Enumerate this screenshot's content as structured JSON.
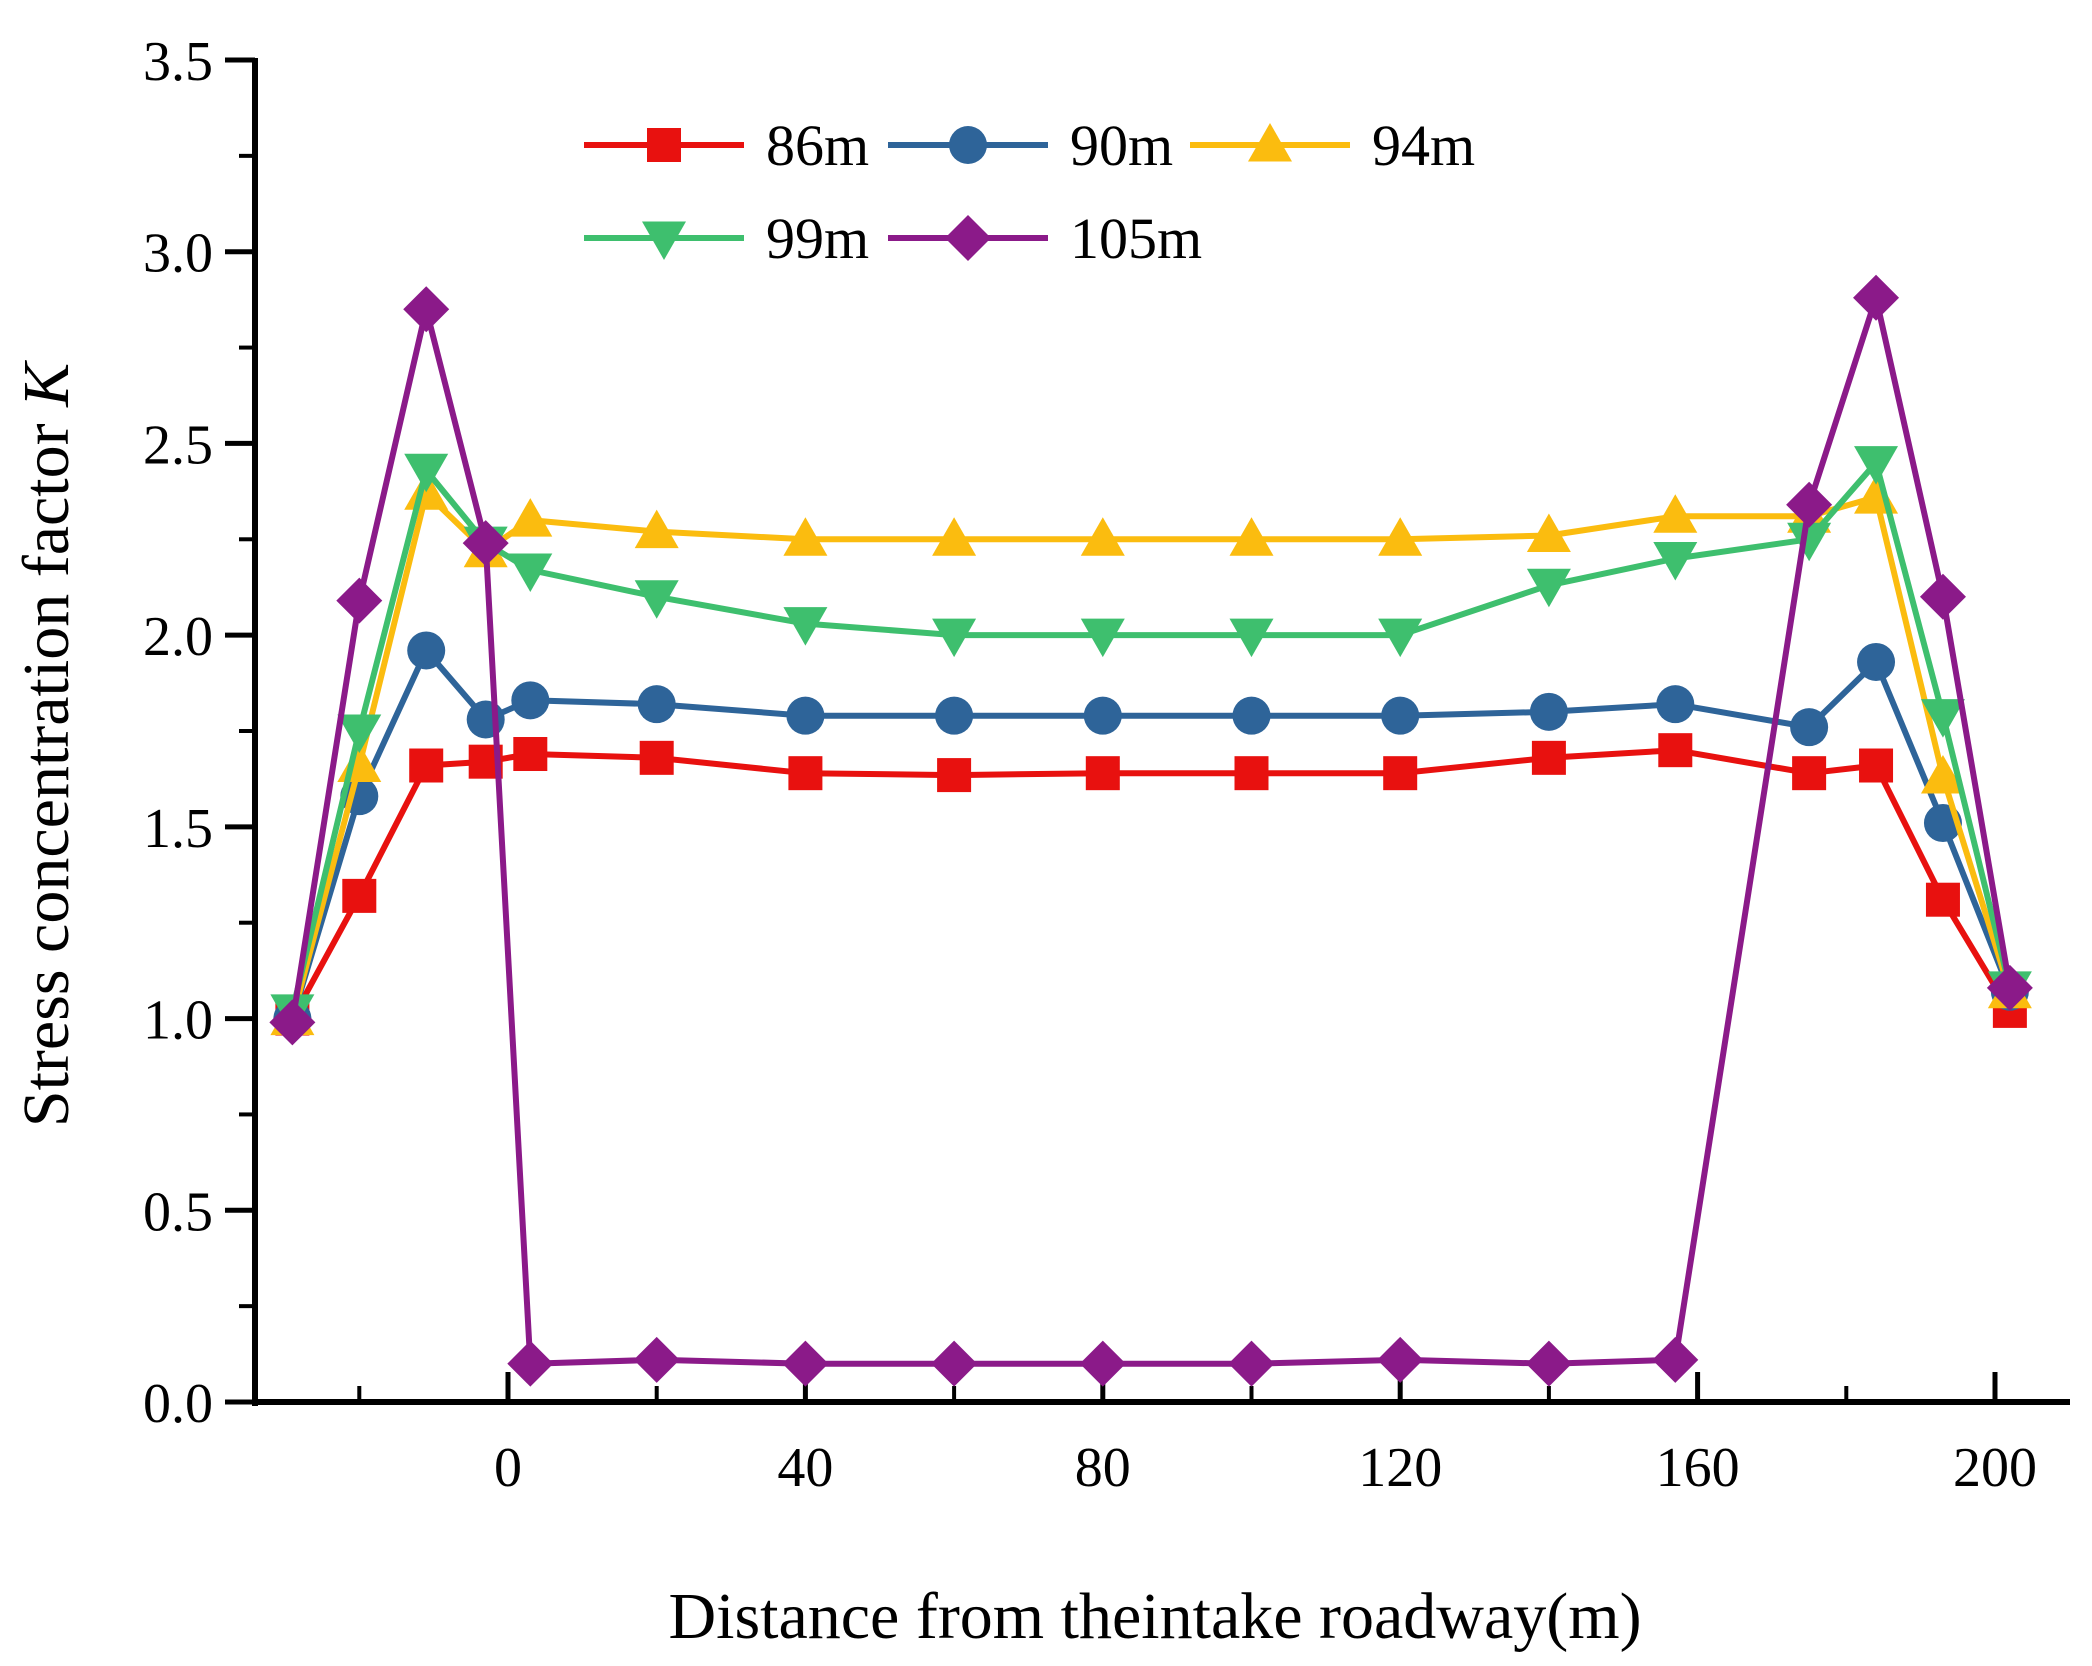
{
  "chart_data": {
    "type": "line",
    "title": "",
    "xlabel": "Distance from theintake roadway(m)",
    "ylabel_prefix": "Stress concentration factor ",
    "ylabel_var": "K",
    "xlim": [
      -30,
      205
    ],
    "ylim": [
      0,
      3.5
    ],
    "xticks": [
      0,
      40,
      80,
      120,
      160,
      200
    ],
    "xtick_labels": [
      "0",
      "40",
      "80",
      "120",
      "160",
      "200"
    ],
    "yticks": [
      0,
      0.5,
      1.0,
      1.5,
      2.0,
      2.5,
      3.0,
      3.5
    ],
    "ytick_labels": [
      "0.0",
      "0.5",
      "1.0",
      "1.5",
      "2.0",
      "2.5",
      "3.0",
      "3.5"
    ],
    "grid": false,
    "legend_position": "top-center",
    "series": [
      {
        "name": "86m",
        "color": "#e8110f",
        "marker": "square",
        "x": [
          -29,
          -20,
          -11,
          -3,
          3,
          20,
          40,
          60,
          80,
          100,
          120,
          140,
          157,
          175,
          184,
          193,
          202
        ],
        "y": [
          1.0,
          1.32,
          1.66,
          1.67,
          1.69,
          1.68,
          1.64,
          1.635,
          1.64,
          1.64,
          1.64,
          1.68,
          1.7,
          1.64,
          1.66,
          1.31,
          1.02
        ]
      },
      {
        "name": "90m",
        "color": "#2e6499",
        "marker": "circle",
        "x": [
          -29,
          -20,
          -11,
          -3,
          3,
          20,
          40,
          60,
          80,
          100,
          120,
          140,
          157,
          175,
          184,
          193,
          202
        ],
        "y": [
          1.0,
          1.58,
          1.96,
          1.78,
          1.83,
          1.82,
          1.79,
          1.79,
          1.79,
          1.79,
          1.79,
          1.8,
          1.82,
          1.76,
          1.93,
          1.51,
          1.07
        ]
      },
      {
        "name": "94m",
        "color": "#fbbc0f",
        "marker": "triangle-up",
        "x": [
          -29,
          -20,
          -11,
          -3,
          3,
          20,
          40,
          60,
          80,
          100,
          120,
          140,
          157,
          175,
          184,
          193,
          202
        ],
        "y": [
          1.0,
          1.66,
          2.37,
          2.22,
          2.3,
          2.27,
          2.25,
          2.25,
          2.25,
          2.25,
          2.25,
          2.26,
          2.31,
          2.31,
          2.36,
          1.63,
          1.07
        ]
      },
      {
        "name": "99m",
        "color": "#3ebf6e",
        "marker": "triangle-down",
        "x": [
          -29,
          -20,
          -11,
          -3,
          3,
          20,
          40,
          60,
          80,
          100,
          120,
          140,
          157,
          175,
          184,
          193,
          202
        ],
        "y": [
          1.02,
          1.75,
          2.43,
          2.24,
          2.17,
          2.1,
          2.03,
          2.0,
          2.0,
          2.0,
          2.0,
          2.13,
          2.2,
          2.25,
          2.45,
          1.79,
          1.08
        ]
      },
      {
        "name": "105m",
        "color": "#8b1a89",
        "marker": "diamond",
        "x": [
          -29,
          -20,
          -11,
          -3,
          3,
          20,
          40,
          60,
          80,
          100,
          120,
          140,
          157,
          175,
          184,
          193,
          202
        ],
        "y": [
          0.99,
          2.09,
          2.85,
          2.24,
          0.1,
          0.11,
          0.1,
          0.1,
          0.1,
          0.1,
          0.11,
          0.1,
          0.11,
          2.34,
          2.88,
          2.1,
          1.08
        ]
      }
    ]
  }
}
